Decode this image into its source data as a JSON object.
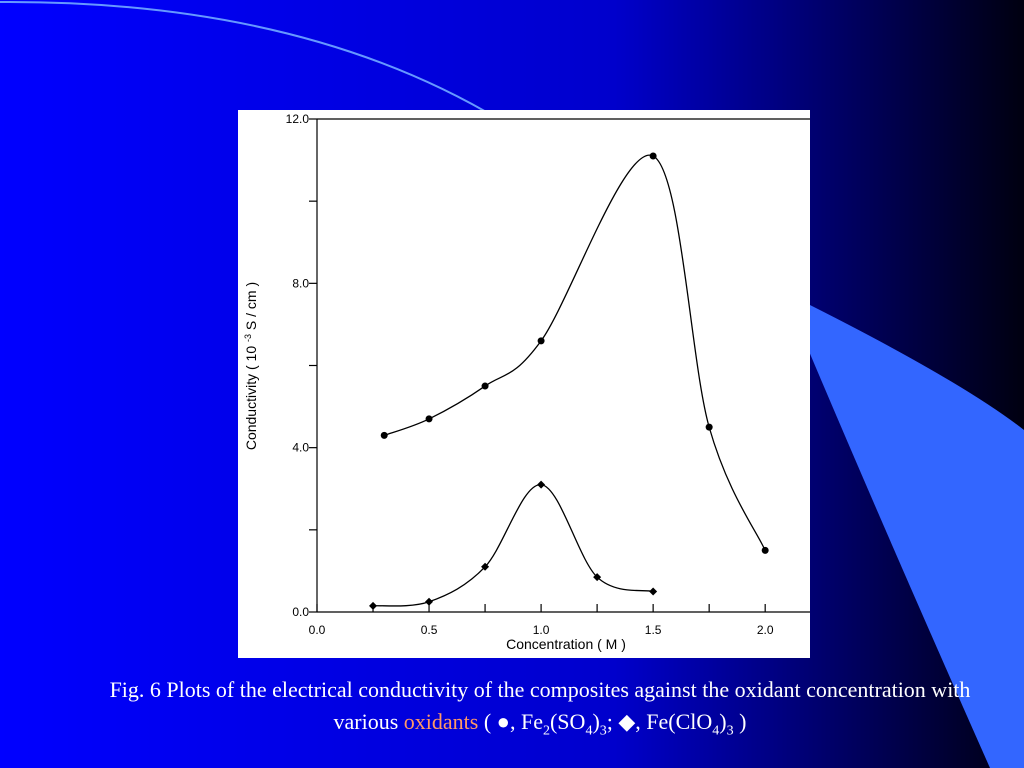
{
  "chart_data": {
    "type": "line",
    "xlabel": "Concentration ( M )",
    "ylabel": [
      "Conductivity (  10 ",
      "-3",
      " S / cm )"
    ],
    "xlim": [
      0,
      2.2
    ],
    "ylim": [
      0,
      12
    ],
    "xticks": [
      {
        "value": 0,
        "label": "0.0"
      },
      {
        "value": 0.5,
        "label": "0.5"
      },
      {
        "value": 1,
        "label": "1.0"
      },
      {
        "value": 1.5,
        "label": "1.5"
      },
      {
        "value": 2,
        "label": "2.0"
      }
    ],
    "xminorticks": [
      0.25,
      0.75,
      1.25,
      1.75
    ],
    "yticks": [
      {
        "value": 0,
        "label": "0.0"
      },
      {
        "value": 4,
        "label": "4.0"
      },
      {
        "value": 8,
        "label": "8.0"
      },
      {
        "value": 12,
        "label": "12.0"
      }
    ],
    "yminorticks": [
      2,
      6,
      10
    ],
    "series": [
      {
        "color": "#000000",
        "marker": "circle",
        "x": [
          0.3,
          0.5,
          0.75,
          1.0,
          1.5,
          1.75,
          2.0
        ],
        "values": [
          4.3,
          4.7,
          5.5,
          6.6,
          11.1,
          4.5,
          1.5
        ]
      },
      {
        "color": "#000000",
        "marker": "diamond",
        "x": [
          0.25,
          0.5,
          0.75,
          1.0,
          1.25,
          1.5
        ],
        "values": [
          0.15,
          0.25,
          1.1,
          3.1,
          0.85,
          0.5
        ]
      }
    ]
  },
  "caption": [
    "Fig. 6 Plots of the electrical conductivity of the composites against the oxidant concentration with various ",
    "oxidants",
    " ( ●, Fe",
    "2",
    "(SO",
    "4",
    ")",
    "3",
    "; ◆, Fe(ClO",
    "4",
    ")",
    "3",
    " )"
  ]
}
